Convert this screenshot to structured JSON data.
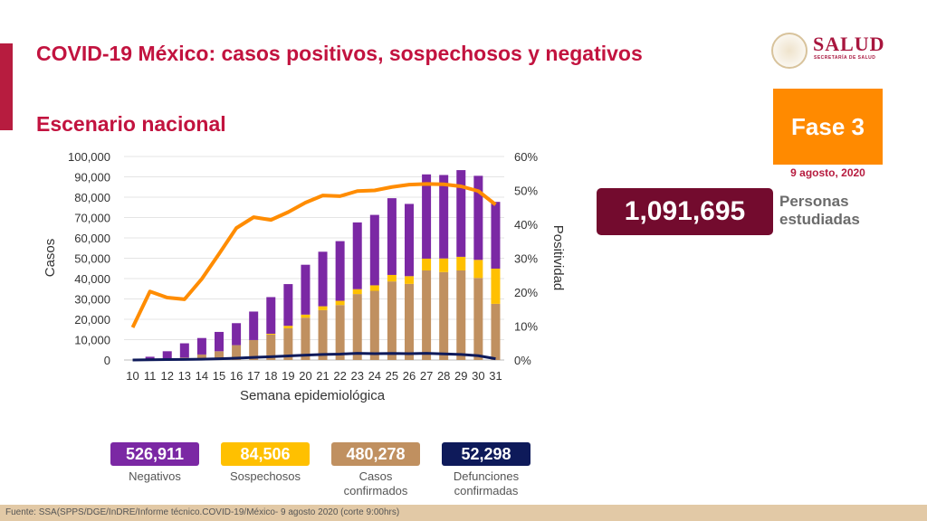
{
  "header": {
    "title": "COVID-19 México: casos positivos, sospechosos y negativos",
    "subtitle": "Escenario nacional"
  },
  "logo": {
    "text": "SALUD",
    "subtext": "SECRETARÍA DE SALUD"
  },
  "phase": {
    "label": "Fase 3",
    "date": "9 agosto, 2020",
    "color": "#ff8a00"
  },
  "studied": {
    "value": "1,091,695",
    "label1": "Personas",
    "label2": "estudiadas"
  },
  "chart_data": {
    "type": "bar",
    "stacked": true,
    "xlabel": "Semana epidemiológica",
    "ylabel": "Casos",
    "y2label": "Positividad",
    "ylim": [
      0,
      100000
    ],
    "y2lim": [
      0,
      60
    ],
    "yticks": [
      "0",
      "10,000",
      "20,000",
      "30,000",
      "40,000",
      "50,000",
      "60,000",
      "70,000",
      "80,000",
      "90,000",
      "100,000"
    ],
    "y2ticks": [
      "0%",
      "10%",
      "20%",
      "30%",
      "40%",
      "50%",
      "60%"
    ],
    "grid": true,
    "categories": [
      "10",
      "11",
      "12",
      "13",
      "14",
      "15",
      "16",
      "17",
      "18",
      "19",
      "20",
      "21",
      "22",
      "23",
      "24",
      "25",
      "26",
      "27",
      "28",
      "29",
      "30",
      "31"
    ],
    "series": [
      {
        "key": "confirmados",
        "kind": "bar",
        "color": "#c09060",
        "values": [
          0,
          300,
          500,
          1200,
          2700,
          4300,
          7300,
          9800,
          12500,
          15600,
          20800,
          24500,
          27000,
          32400,
          34000,
          38600,
          37400,
          44000,
          43200,
          44000,
          40300,
          27600
        ]
      },
      {
        "key": "sospechosos",
        "kind": "bar",
        "color": "#ffc000",
        "values": [
          0,
          0,
          0,
          0,
          0,
          0,
          0,
          0,
          400,
          1200,
          1500,
          1900,
          2100,
          2400,
          2700,
          3200,
          3800,
          5800,
          6700,
          6700,
          8900,
          17300
        ]
      },
      {
        "key": "negativos",
        "kind": "bar",
        "color": "#7b28a4",
        "values": [
          0,
          1300,
          3800,
          7000,
          8100,
          9500,
          10800,
          14000,
          18000,
          20500,
          24500,
          26800,
          29300,
          32800,
          34600,
          37700,
          35500,
          41400,
          41000,
          42600,
          41300,
          32800
        ]
      },
      {
        "key": "positividad",
        "kind": "line",
        "axis": "right",
        "color": "#ff8c00",
        "values": [
          9.6,
          20.2,
          18.4,
          17.9,
          23.9,
          31.3,
          38.9,
          42.1,
          41.3,
          43.6,
          46.4,
          48.5,
          48.3,
          49.8,
          50.0,
          51.0,
          51.7,
          51.9,
          51.8,
          51.2,
          49.8,
          45.8
        ]
      },
      {
        "key": "defunciones",
        "kind": "line",
        "axis": "left",
        "color": "#0e1a5a",
        "values": [
          0,
          100,
          200,
          300,
          400,
          600,
          900,
          1300,
          1600,
          2000,
          2400,
          2700,
          2900,
          3300,
          3100,
          3200,
          3100,
          3300,
          3000,
          2700,
          2100,
          600
        ]
      }
    ]
  },
  "totals": [
    {
      "value": "526,911",
      "label1": "Negativos",
      "label2": "",
      "color": "#7b28a4"
    },
    {
      "value": "84,506",
      "label1": "Sospechosos",
      "label2": "",
      "color": "#ffc000"
    },
    {
      "value": "480,278",
      "label1": "Casos",
      "label2": "confirmados",
      "color": "#c09060"
    },
    {
      "value": "52,298",
      "label1": "Defunciones",
      "label2": "confirmadas",
      "color": "#0e1a5a"
    }
  ],
  "footer": {
    "source": "Fuente: SSA(SPPS/DGE/InDRE/Informe técnico.COVID-19/México- 9 agosto 2020 (corte 9:00hrs)"
  }
}
